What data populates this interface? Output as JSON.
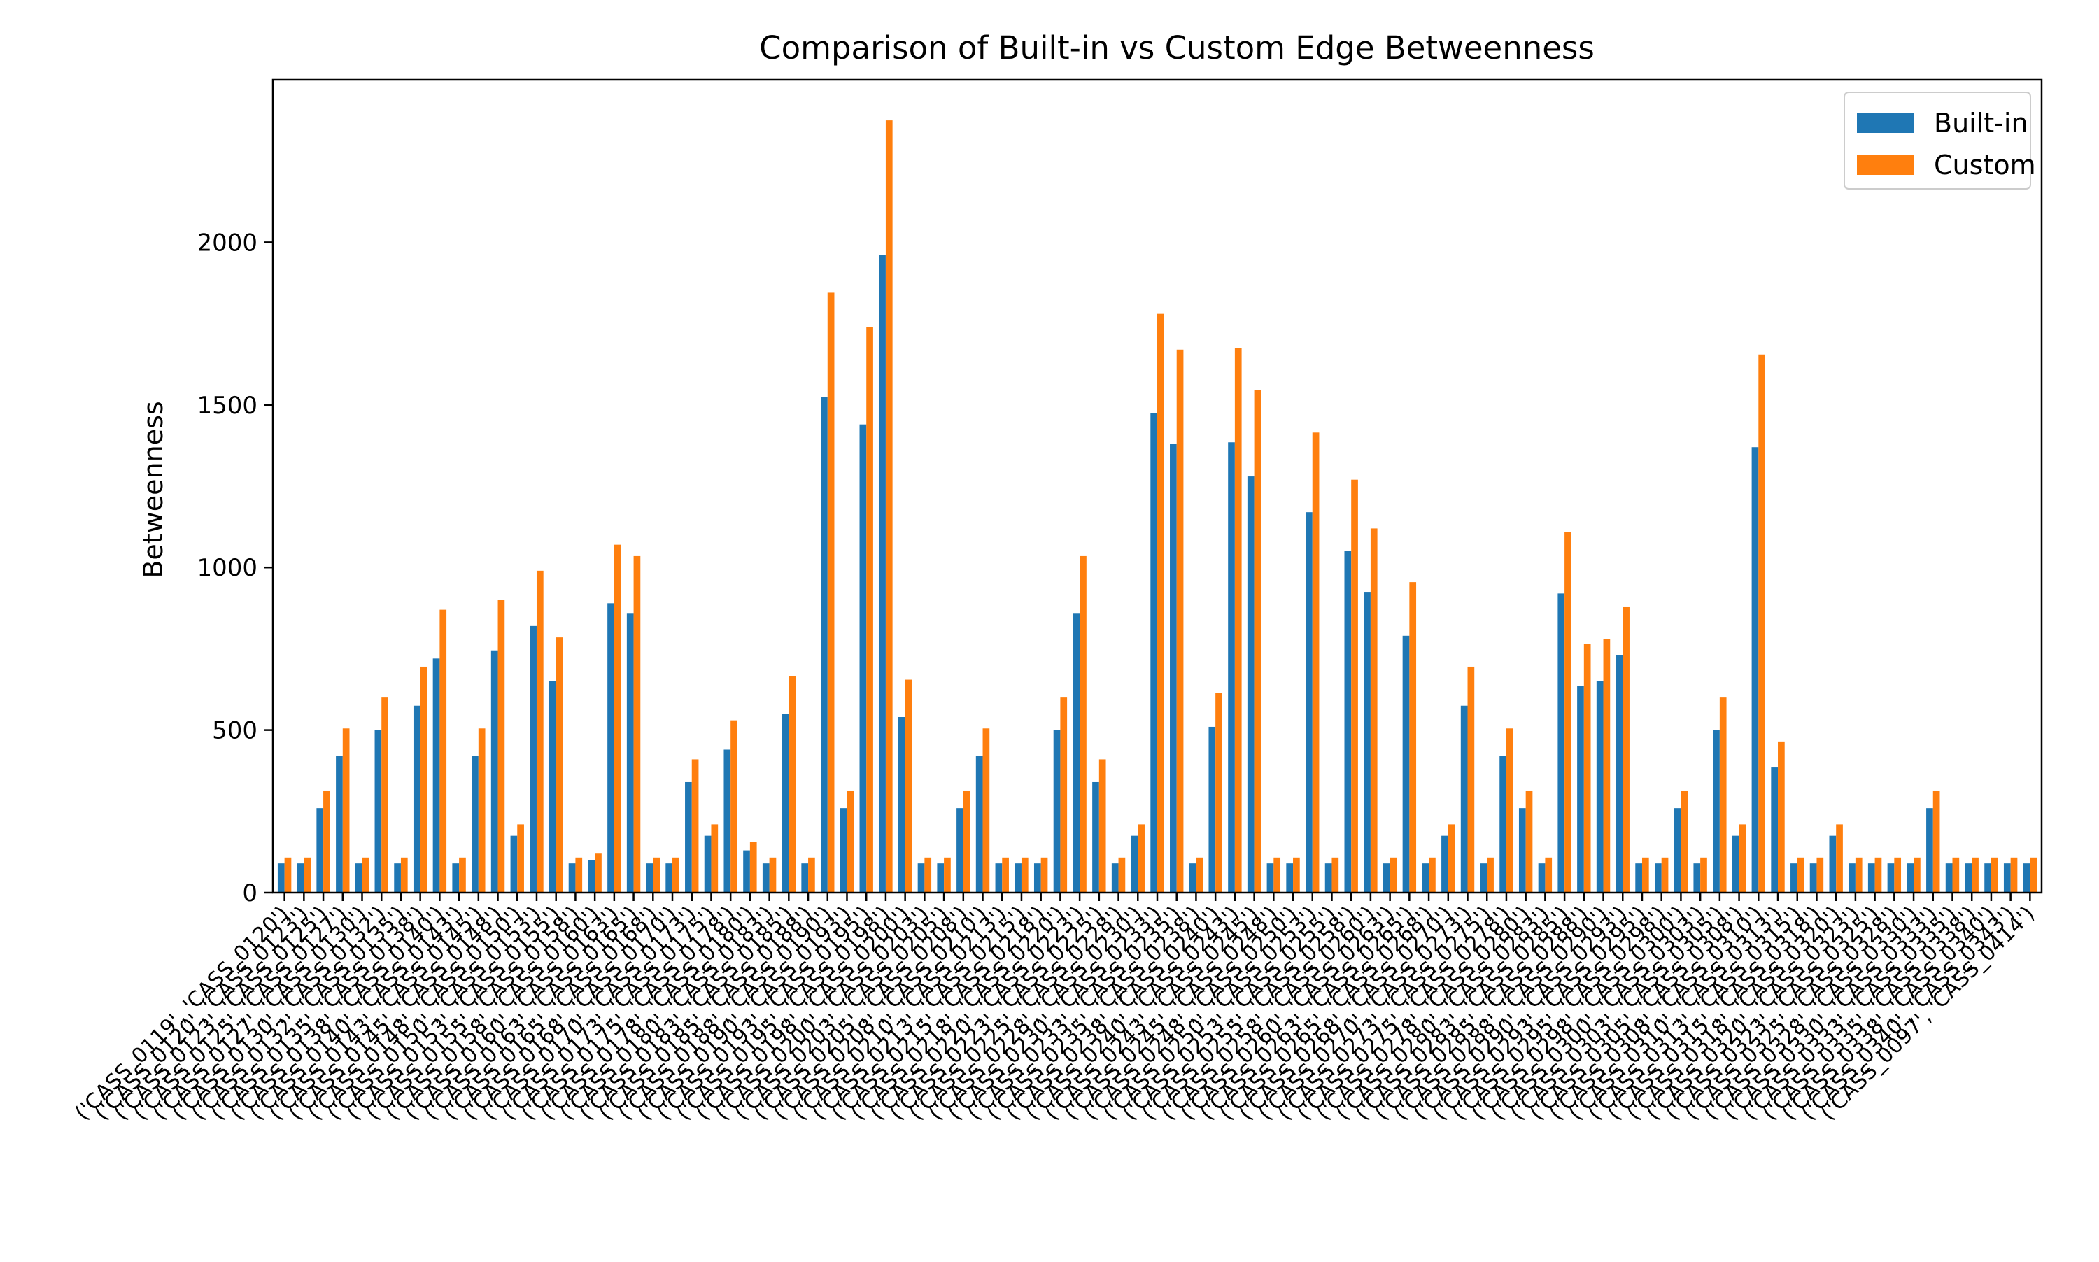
{
  "chart_data": {
    "type": "bar",
    "title": "Comparison of Built-in vs Custom Edge Betweenness",
    "xlabel": "",
    "ylabel": "Betweenness",
    "ylim": [
      0,
      2500
    ],
    "yticks": [
      0,
      500,
      1000,
      1500,
      2000
    ],
    "grid": false,
    "legend_position": "top-right",
    "colors": {
      "Built-in": "#1f77b4",
      "Custom": "#ff7f0e"
    },
    "categories": [
      "('CASS_0119', 'CASS_0120')",
      "('CASS_0120', 'CASS_0123')",
      "('CASS_0123', 'CASS_0125')",
      "('CASS_0125', 'CASS_0127')",
      "('CASS_0127', 'CASS_0130')",
      "('CASS_0130', 'CASS_0132')",
      "('CASS_0132', 'CASS_0135')",
      "('CASS_0135', 'CASS_0138')",
      "('CASS_0138', 'CASS_0140')",
      "('CASS_0140', 'CASS_0143')",
      "('CASS_0143', 'CASS_0145')",
      "('CASS_0145', 'CASS_0148')",
      "('CASS_0148', 'CASS_0150')",
      "('CASS_0150', 'CASS_0153')",
      "('CASS_0153', 'CASS_0155')",
      "('CASS_0155', 'CASS_0158')",
      "('CASS_0158', 'CASS_0160')",
      "('CASS_0160', 'CASS_0163')",
      "('CASS_0163', 'CASS_0165')",
      "('CASS_0165', 'CASS_0168')",
      "('CASS_0168', 'CASS_0170')",
      "('CASS_0170', 'CASS_0173')",
      "('CASS_0173', 'CASS_0175')",
      "('CASS_0175', 'CASS_0178')",
      "('CASS_0178', 'CASS_0180')",
      "('CASS_0180', 'CASS_0183')",
      "('CASS_0183', 'CASS_0185')",
      "('CASS_0185', 'CASS_0188')",
      "('CASS_0188', 'CASS_0190')",
      "('CASS_0190', 'CASS_0193')",
      "('CASS_0193', 'CASS_0195')",
      "('CASS_0195', 'CASS_0198')",
      "('CASS_0198', 'CASS_0200')",
      "('CASS_0200', 'CASS_0203')",
      "('CASS_0203', 'CASS_0205')",
      "('CASS_0205', 'CASS_0208')",
      "('CASS_0208', 'CASS_0210')",
      "('CASS_0210', 'CASS_0213')",
      "('CASS_0213', 'CASS_0215')",
      "('CASS_0215', 'CASS_0218')",
      "('CASS_0218', 'CASS_0220')",
      "('CASS_0220', 'CASS_0223')",
      "('CASS_0223', 'CASS_0225')",
      "('CASS_0225', 'CASS_0228')",
      "('CASS_0228', 'CASS_0230')",
      "('CASS_0230', 'CASS_0233')",
      "('CASS_0233', 'CASS_0235')",
      "('CASS_0235', 'CASS_0238')",
      "('CASS_0238', 'CASS_0240')",
      "('CASS_0240', 'CASS_0243')",
      "('CASS_0243', 'CASS_0245')",
      "('CASS_0245', 'CASS_0248')",
      "('CASS_0248', 'CASS_0250')",
      "('CASS_0250', 'CASS_0253')",
      "('CASS_0253', 'CASS_0255')",
      "('CASS_0255', 'CASS_0258')",
      "('CASS_0258', 'CASS_0260')",
      "('CASS_0260', 'CASS_0263')",
      "('CASS_0263', 'CASS_0265')",
      "('CASS_0265', 'CASS_0268')",
      "('CASS_0268', 'CASS_0270')",
      "('CASS_0270', 'CASS_0273')",
      "('CASS_0273', 'CASS_0275')",
      "('CASS_0275', 'CASS_0278')",
      "('CASS_0278', 'CASS_0280')",
      "('CASS_0280', 'CASS_0283')",
      "('CASS_0283', 'CASS_0285')",
      "('CASS_0285', 'CASS_0288')",
      "('CASS_0288', 'CASS_0290')",
      "('CASS_0290', 'CASS_0293')",
      "('CASS_0293', 'CASS_0295')",
      "('CASS_0295', 'CASS_0298')",
      "('CASS_0298', 'CASS_0300')",
      "('CASS_0300', 'CASS_0303')",
      "('CASS_0303', 'CASS_0305')",
      "('CASS_0305', 'CASS_0308')",
      "('CASS_0308', 'CASS_0310')",
      "('CASS_0310', 'CASS_0313')",
      "('CASS_0313', 'CASS_0315')",
      "('CASS_0315', 'CASS_0318')",
      "('CASS_0318', 'CASS_0320')",
      "('CASS_0320', 'CASS_0323')",
      "('CASS_0323', 'CASS_0325')",
      "('CASS_0325', 'CASS_0328')",
      "('CASS_0328', 'CASS_0330')",
      "('CASS_0330', 'CASS_0333')",
      "('CASS_0333', 'CASS_0335')",
      "('CASS_0335', 'CASS_0338')",
      "('CASS_0338', 'CASS_0340')",
      "('CASS_0340', 'CASS_0343')",
      "('CASS_0097', 'CASS_0414')"
    ],
    "series": [
      {
        "name": "Built-in",
        "values": [
          90,
          90,
          260,
          420,
          90,
          500,
          90,
          575,
          720,
          90,
          420,
          745,
          175,
          820,
          650,
          90,
          100,
          890,
          860,
          90,
          90,
          340,
          175,
          440,
          130,
          90,
          550,
          90,
          1525,
          260,
          1440,
          1960,
          540,
          90,
          90,
          260,
          420,
          90,
          90,
          90,
          500,
          860,
          340,
          90,
          175,
          1475,
          1380,
          90,
          510,
          1385,
          1280,
          90,
          90,
          1170,
          90,
          1050,
          925,
          90,
          790,
          90,
          175,
          575,
          90,
          420,
          260,
          90,
          920,
          635,
          650,
          730,
          90,
          90,
          260,
          90,
          500,
          175,
          1370,
          385,
          90,
          90,
          175,
          90,
          90,
          90,
          90,
          260,
          90,
          90,
          90,
          90,
          90
        ]
      },
      {
        "name": "Custom",
        "values": [
          108,
          108,
          312,
          505,
          108,
          600,
          108,
          695,
          870,
          108,
          505,
          900,
          210,
          990,
          785,
          108,
          120,
          1070,
          1035,
          108,
          108,
          410,
          210,
          530,
          155,
          108,
          665,
          108,
          1845,
          312,
          1740,
          2375,
          655,
          108,
          108,
          312,
          505,
          108,
          108,
          108,
          600,
          1035,
          410,
          108,
          210,
          1780,
          1670,
          108,
          615,
          1675,
          1545,
          108,
          108,
          1415,
          108,
          1270,
          1120,
          108,
          955,
          108,
          210,
          695,
          108,
          505,
          312,
          108,
          1110,
          765,
          780,
          880,
          108,
          108,
          312,
          108,
          600,
          210,
          1655,
          465,
          108,
          108,
          210,
          108,
          108,
          108,
          108,
          312,
          108,
          108,
          108,
          108,
          108
        ]
      }
    ]
  }
}
